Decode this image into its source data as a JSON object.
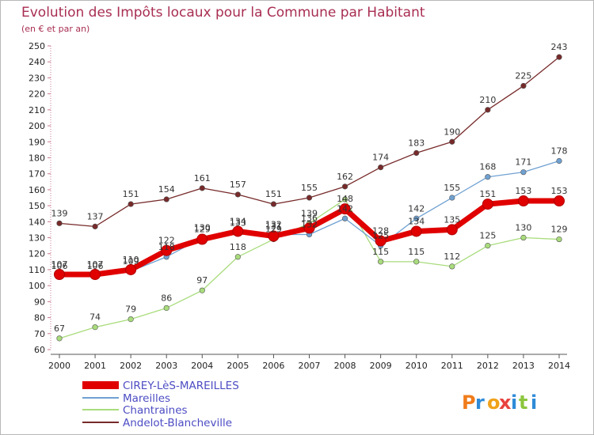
{
  "chart_data": {
    "type": "line",
    "title": "Evolution des Impôts locaux pour la Commune par Habitant",
    "subtitle": "(en € et par an)",
    "xlabel": "",
    "ylabel": "",
    "categories": [
      "2000",
      "2001",
      "2002",
      "2003",
      "2004",
      "2005",
      "2006",
      "2007",
      "2008",
      "2009",
      "2010",
      "2011",
      "2012",
      "2013",
      "2014"
    ],
    "ylim": [
      60,
      250
    ],
    "yticks": [
      "60",
      "70",
      "80",
      "90",
      "100",
      "110",
      "120",
      "130",
      "140",
      "150",
      "160",
      "170",
      "180",
      "190",
      "200",
      "210",
      "220",
      "230",
      "240",
      "250"
    ],
    "grid": false,
    "legend_position": "bottom-left",
    "series": [
      {
        "name": "CIREY-LèS-MAREILLES",
        "color": "#e00000",
        "values": [
          107,
          107,
          110,
          122,
          129,
          134,
          131,
          136,
          148,
          128,
          134,
          135,
          151,
          153,
          153
        ],
        "labels": [
          "107",
          "107",
          "110",
          "122",
          "129",
          "134",
          "131",
          "136",
          "148",
          "128",
          "134",
          "135",
          "151",
          "153",
          "153"
        ]
      },
      {
        "name": "Mareilles",
        "color": "#6fa1d2",
        "values": [
          106,
          106,
          109,
          118,
          130,
          133,
          132,
          132,
          142,
          125,
          142,
          155,
          168,
          171,
          178
        ],
        "labels": [
          "106",
          "106",
          "109",
          "118",
          "130",
          "133",
          "132",
          "132",
          "142",
          "125",
          "142",
          "155",
          "168",
          "171",
          "178"
        ]
      },
      {
        "name": "Chantraines",
        "color": "#a9dc7c",
        "values": [
          67,
          74,
          79,
          86,
          97,
          118,
          129,
          139,
          154,
          115,
          115,
          112,
          125,
          130,
          129
        ],
        "labels": [
          "67",
          "74",
          "79",
          "86",
          "97",
          "118",
          "129",
          "139",
          "",
          "115",
          "115",
          "112",
          "125",
          "130",
          "129"
        ]
      },
      {
        "name": "Andelot-Blancheville",
        "color": "#772a2a",
        "values": [
          139,
          137,
          151,
          154,
          161,
          157,
          151,
          155,
          162,
          174,
          183,
          190,
          210,
          225,
          243
        ],
        "labels": [
          "139",
          "137",
          "151",
          "154",
          "161",
          "157",
          "151",
          "155",
          "162",
          "174",
          "183",
          "190",
          "210",
          "225",
          "243"
        ]
      }
    ]
  },
  "logo": {
    "text": "Proxiti"
  }
}
